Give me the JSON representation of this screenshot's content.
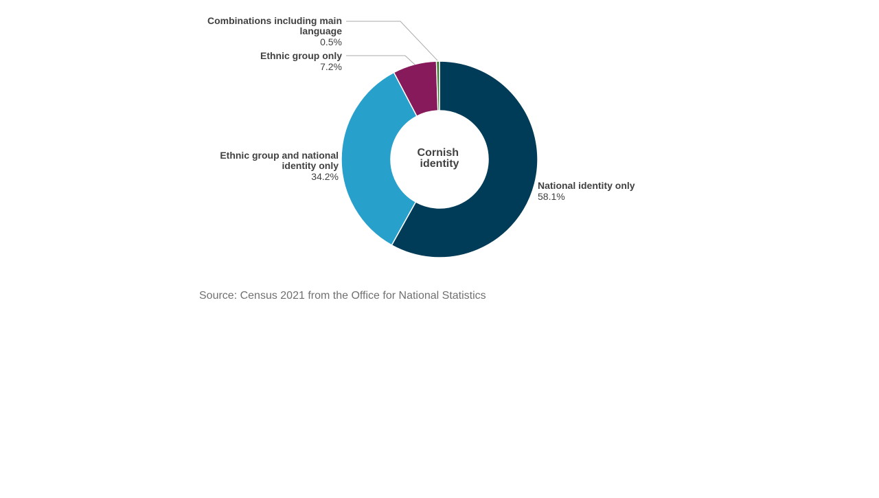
{
  "chart_data": {
    "type": "pie",
    "variant": "donut",
    "center_label": [
      "Cornish",
      "identity"
    ],
    "slices": [
      {
        "label": [
          "National identity only"
        ],
        "value": 58.1,
        "display": "58.1%",
        "color": "#003c57"
      },
      {
        "label": [
          "Ethnic group and national",
          "identity only"
        ],
        "value": 34.2,
        "display": "34.2%",
        "color": "#27a0cc"
      },
      {
        "label": [
          "Ethnic group only"
        ],
        "value": 7.2,
        "display": "7.2%",
        "color": "#871a5b"
      },
      {
        "label": [
          "Combinations including main",
          "language"
        ],
        "value": 0.5,
        "display": "0.5%",
        "color": "#3f7a2c"
      }
    ],
    "start_angle": "12 o'clock",
    "direction": "clockwise",
    "legend": "none"
  },
  "source": "Source: Census 2021 from the Office for National Statistics"
}
